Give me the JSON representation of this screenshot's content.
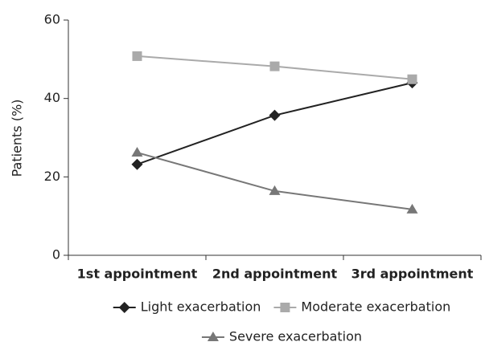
{
  "chart_data": {
    "type": "line",
    "y_label": "Patients (%)",
    "categories": [
      "1st appointment",
      "2nd appointment",
      "3rd appointment"
    ],
    "series": [
      {
        "name": "Light exacerbation",
        "color": "#222222",
        "marker": "diamond",
        "values": [
          23.2,
          35.7,
          44
        ]
      },
      {
        "name": "Moderate exacerbation",
        "color": "#aaaaaa",
        "marker": "square",
        "values": [
          50.8,
          48.2,
          44.9
        ]
      },
      {
        "name": "Severe exacerbation",
        "color": "#777777",
        "marker": "triangle",
        "values": [
          26.2,
          16.4,
          11.7
        ]
      }
    ],
    "ylim": [
      0,
      60
    ],
    "yticks": [
      0,
      20,
      40,
      60
    ],
    "grid": false,
    "legend": "bottom"
  }
}
